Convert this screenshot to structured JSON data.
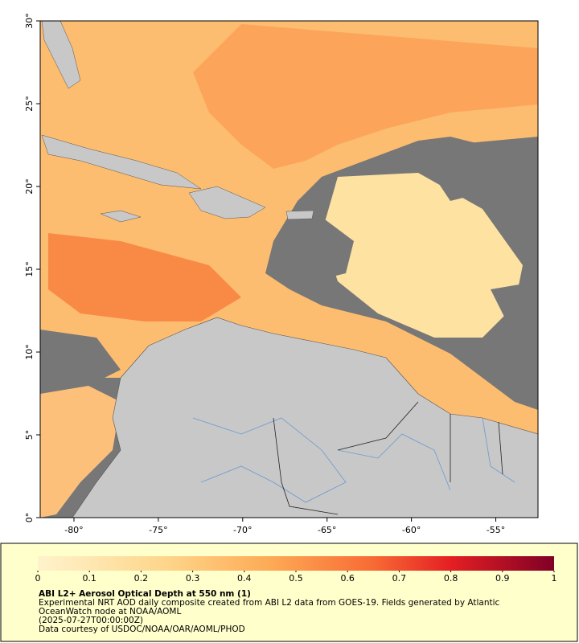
{
  "map": {
    "xlim": [
      -82,
      -52.5
    ],
    "ylim": [
      0,
      30
    ],
    "xticks": [
      {
        "value": -80,
        "label": "-80°"
      },
      {
        "value": -75,
        "label": "-75°"
      },
      {
        "value": -70,
        "label": "-70°"
      },
      {
        "value": -65,
        "label": "-65°"
      },
      {
        "value": -60,
        "label": "-60°"
      },
      {
        "value": -55,
        "label": "-55°"
      }
    ],
    "yticks": [
      {
        "value": 0,
        "label": "0°"
      },
      {
        "value": 5,
        "label": "5°"
      },
      {
        "value": 10,
        "label": "10°"
      },
      {
        "value": 15,
        "label": "15°"
      },
      {
        "value": 20,
        "label": "20°"
      },
      {
        "value": 25,
        "label": "25°"
      },
      {
        "value": 30,
        "label": "30°"
      }
    ]
  },
  "colorbar": {
    "lim": [
      0,
      1
    ],
    "ticks": [
      0,
      0.1,
      0.2,
      0.3,
      0.4,
      0.5,
      0.6,
      0.7,
      0.8,
      0.9,
      1
    ]
  },
  "caption": {
    "title": "ABI L2+ Aerosol Optical Depth at 550 nm (1)",
    "lines": [
      "Experimental NRT AOD daily composite created from ABI L2 data from GOES-19. Fields generated by Atlantic",
      "OceanWatch node at NOAA/AOML",
      "(2025-07-27T00:00:00Z)",
      "Data courtesy of USDOC/NOAA/OAR/AOML/PHOD"
    ]
  }
}
